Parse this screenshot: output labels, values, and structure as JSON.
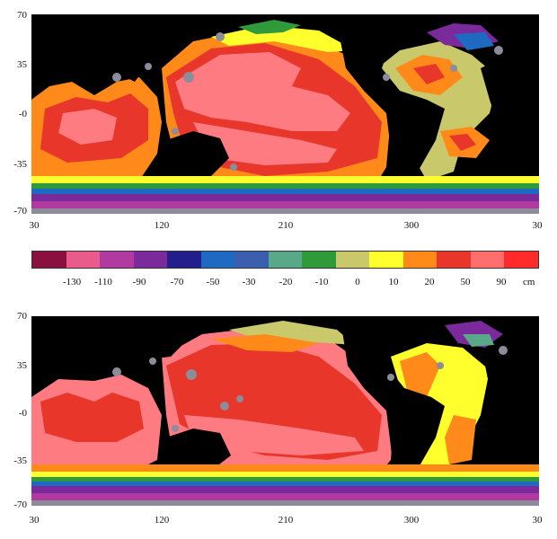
{
  "top_map": {
    "y_ticks": [
      "70",
      "35",
      "-0",
      "-35",
      "-70"
    ],
    "x_ticks": [
      "30",
      "120",
      "210",
      "300",
      "30"
    ]
  },
  "bottom_map": {
    "y_ticks": [
      "70",
      "35",
      "-0",
      "-35",
      "-70"
    ],
    "x_ticks": [
      "30",
      "120",
      "210",
      "300",
      "30"
    ]
  },
  "colorbar": {
    "colors": [
      "#8a1040",
      "#e85b8a",
      "#b03aa0",
      "#7a2a9a",
      "#241e8c",
      "#1e6ac2",
      "#3a5fae",
      "#5aa88a",
      "#2f9a3a",
      "#c9c86a",
      "#ffff2e",
      "#ff8a1a",
      "#e8362a",
      "#ff6e6e",
      "#ff2a2a"
    ],
    "labels": [
      "-130",
      "-110",
      "-90",
      "-70",
      "-50",
      "-30",
      "-20",
      "-10",
      "0",
      "10",
      "20",
      "50",
      "90"
    ],
    "unit": "cm"
  },
  "colors": {
    "land": "#000000",
    "coast_ice": "#8c8c9a",
    "pink": "#ff7b82",
    "red": "#e8362a",
    "orange": "#ff8a1a",
    "yellow": "#ffff2e",
    "olive": "#c9c86a",
    "green": "#2f9a3a",
    "teal": "#5aa88a",
    "blue": "#1e6ac2",
    "purple": "#7a2a9a",
    "magenta": "#b03aa0"
  }
}
